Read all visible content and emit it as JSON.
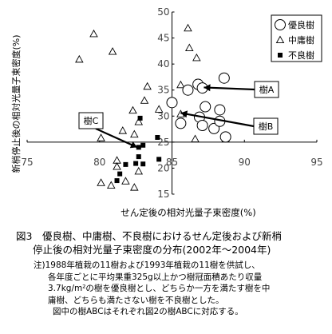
{
  "chart_data": {
    "type": "scatter",
    "xlabel": "せん定後の相対光量子束密度(%)",
    "ylabel": "新梢停止後の相対光量子束密度(%)",
    "xlim": [
      75,
      95
    ],
    "ylim": [
      15,
      50
    ],
    "x_ticks": [
      "75",
      "80",
      "85",
      "90",
      "95"
    ],
    "y_ticks": [
      "15",
      "20",
      "25",
      "30",
      "35",
      "40",
      "45",
      "50"
    ],
    "x_axis_crosses_y": 25,
    "y_axis_crosses_x": 85,
    "grid": false,
    "legend_position": "top-right",
    "series": [
      {
        "name": "優良樹",
        "marker": "open-circle",
        "points": [
          [
            85.0,
            32.6
          ],
          [
            86.1,
            35.0
          ],
          [
            86.8,
            36.1
          ],
          [
            87.1,
            35.4
          ],
          [
            88.6,
            37.3
          ],
          [
            87.3,
            31.8
          ],
          [
            86.9,
            29.8
          ],
          [
            88.3,
            31.2
          ],
          [
            85.6,
            28.6
          ],
          [
            87.1,
            28.2
          ],
          [
            87.9,
            27.6
          ],
          [
            88.3,
            29.0
          ],
          [
            88.7,
            26.0
          ]
        ]
      },
      {
        "name": "中庸樹",
        "marker": "open-triangle",
        "points": [
          [
            79.6,
            45.8
          ],
          [
            78.6,
            40.9
          ],
          [
            80.9,
            42.4
          ],
          [
            86.1,
            46.9
          ],
          [
            86.2,
            43.1
          ],
          [
            86.7,
            41.2
          ],
          [
            85.6,
            36.0
          ],
          [
            83.3,
            35.7
          ],
          [
            83.1,
            33.0
          ],
          [
            82.3,
            31.1
          ],
          [
            84.1,
            31.3
          ],
          [
            82.7,
            28.9
          ],
          [
            81.6,
            27.2
          ],
          [
            82.4,
            26.5
          ],
          [
            80.1,
            25.8
          ],
          [
            81.2,
            21.5
          ],
          [
            81.2,
            20.3
          ],
          [
            82.7,
            19.4
          ],
          [
            81.8,
            17.5
          ],
          [
            80.1,
            17.2
          ],
          [
            80.8,
            16.7
          ],
          [
            82.4,
            16.3
          ],
          [
            88.7,
            25.6
          ],
          [
            86.6,
            25.6
          ],
          [
            85.6,
            30.4
          ]
        ]
      },
      {
        "name": "不良樹",
        "marker": "filled-square",
        "points": [
          [
            82.8,
            29.6
          ],
          [
            84.0,
            25.9
          ],
          [
            83.0,
            24.4
          ],
          [
            82.7,
            24.0
          ],
          [
            82.7,
            22.2
          ],
          [
            84.1,
            21.7
          ],
          [
            82.5,
            20.9
          ],
          [
            83.0,
            20.8
          ],
          [
            81.8,
            20.7
          ],
          [
            81.4,
            18.9
          ],
          [
            81.2,
            17.6
          ]
        ]
      }
    ],
    "annotations": [
      {
        "label": "樹A",
        "arrow_to": [
          87.2,
          35.5
        ]
      },
      {
        "label": "樹B",
        "arrow_to": [
          85.6,
          30.6
        ]
      },
      {
        "label": "樹C",
        "arrow_to": [
          82.6,
          24.0
        ]
      }
    ]
  },
  "caption": {
    "line1": "図3　優良樹、中庸樹、不良樹におけるせん定後および新梢",
    "line2": "停止後の相対光量子束密度の分布(2002年～2004年)",
    "notes": [
      "注)1988年植栽の11樹および1993年植栽の11樹を供試し、",
      "各年度ごとに平均果重325g以上かつ樹冠面積あたり収量",
      "3.7kg/m²の樹を優良樹とし、どちらか一方を満たす樹を中",
      "庸樹、どちらも満たさない樹を不良樹とした。",
      "図中の樹ABCはそれぞれ図2の樹ABCに対応する。"
    ]
  }
}
